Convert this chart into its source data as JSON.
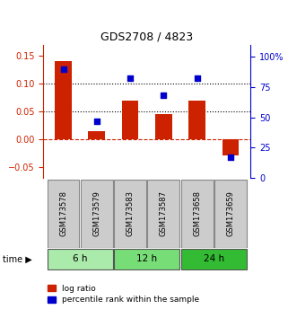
{
  "title": "GDS2708 / 4823",
  "samples": [
    "GSM173578",
    "GSM173579",
    "GSM173583",
    "GSM173587",
    "GSM173658",
    "GSM173659"
  ],
  "log_ratio": [
    0.14,
    0.015,
    0.07,
    0.045,
    0.07,
    -0.03
  ],
  "percentile_rank": [
    90,
    47,
    82,
    68,
    82,
    17
  ],
  "time_groups": [
    {
      "label": "6 h",
      "indices": [
        0,
        1
      ],
      "color": "#aaeaaa"
    },
    {
      "label": "12 h",
      "indices": [
        2,
        3
      ],
      "color": "#77dd77"
    },
    {
      "label": "24 h",
      "indices": [
        4,
        5
      ],
      "color": "#33bb33"
    }
  ],
  "bar_color": "#cc2200",
  "dot_color": "#0000cc",
  "ylim_left": [
    -0.07,
    0.17
  ],
  "ylim_right": [
    0,
    110
  ],
  "yticks_left": [
    -0.05,
    0.0,
    0.05,
    0.1,
    0.15
  ],
  "yticks_right": [
    0,
    25,
    50,
    75,
    100
  ],
  "ytick_labels_right": [
    "0",
    "25",
    "50",
    "75",
    "100%"
  ],
  "hlines": [
    0.05,
    0.1
  ],
  "zero_line_color": "#cc2200",
  "hline_color": "#000000",
  "bg_color": "#ffffff",
  "plot_bg_color": "#ffffff",
  "sample_box_color": "#cccccc",
  "time_label": "time"
}
